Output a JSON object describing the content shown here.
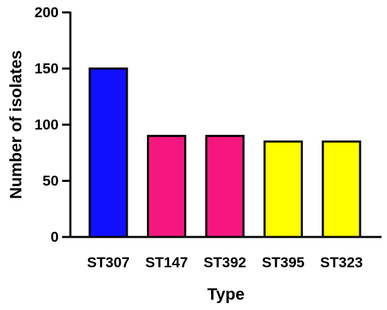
{
  "chart_data": {
    "type": "bar",
    "categories": [
      "ST307",
      "ST147",
      "ST392",
      "ST395",
      "ST323"
    ],
    "values": [
      150,
      90,
      90,
      85,
      85
    ],
    "bar_colors": [
      "#1010ff",
      "#f5177f",
      "#f5177f",
      "#ffff00",
      "#ffff00"
    ],
    "xlabel": "Type",
    "ylabel": "Number of isolates",
    "ylim": [
      0,
      200
    ],
    "yticks": [
      0,
      50,
      100,
      150,
      200
    ],
    "grid": false,
    "legend": "none"
  }
}
